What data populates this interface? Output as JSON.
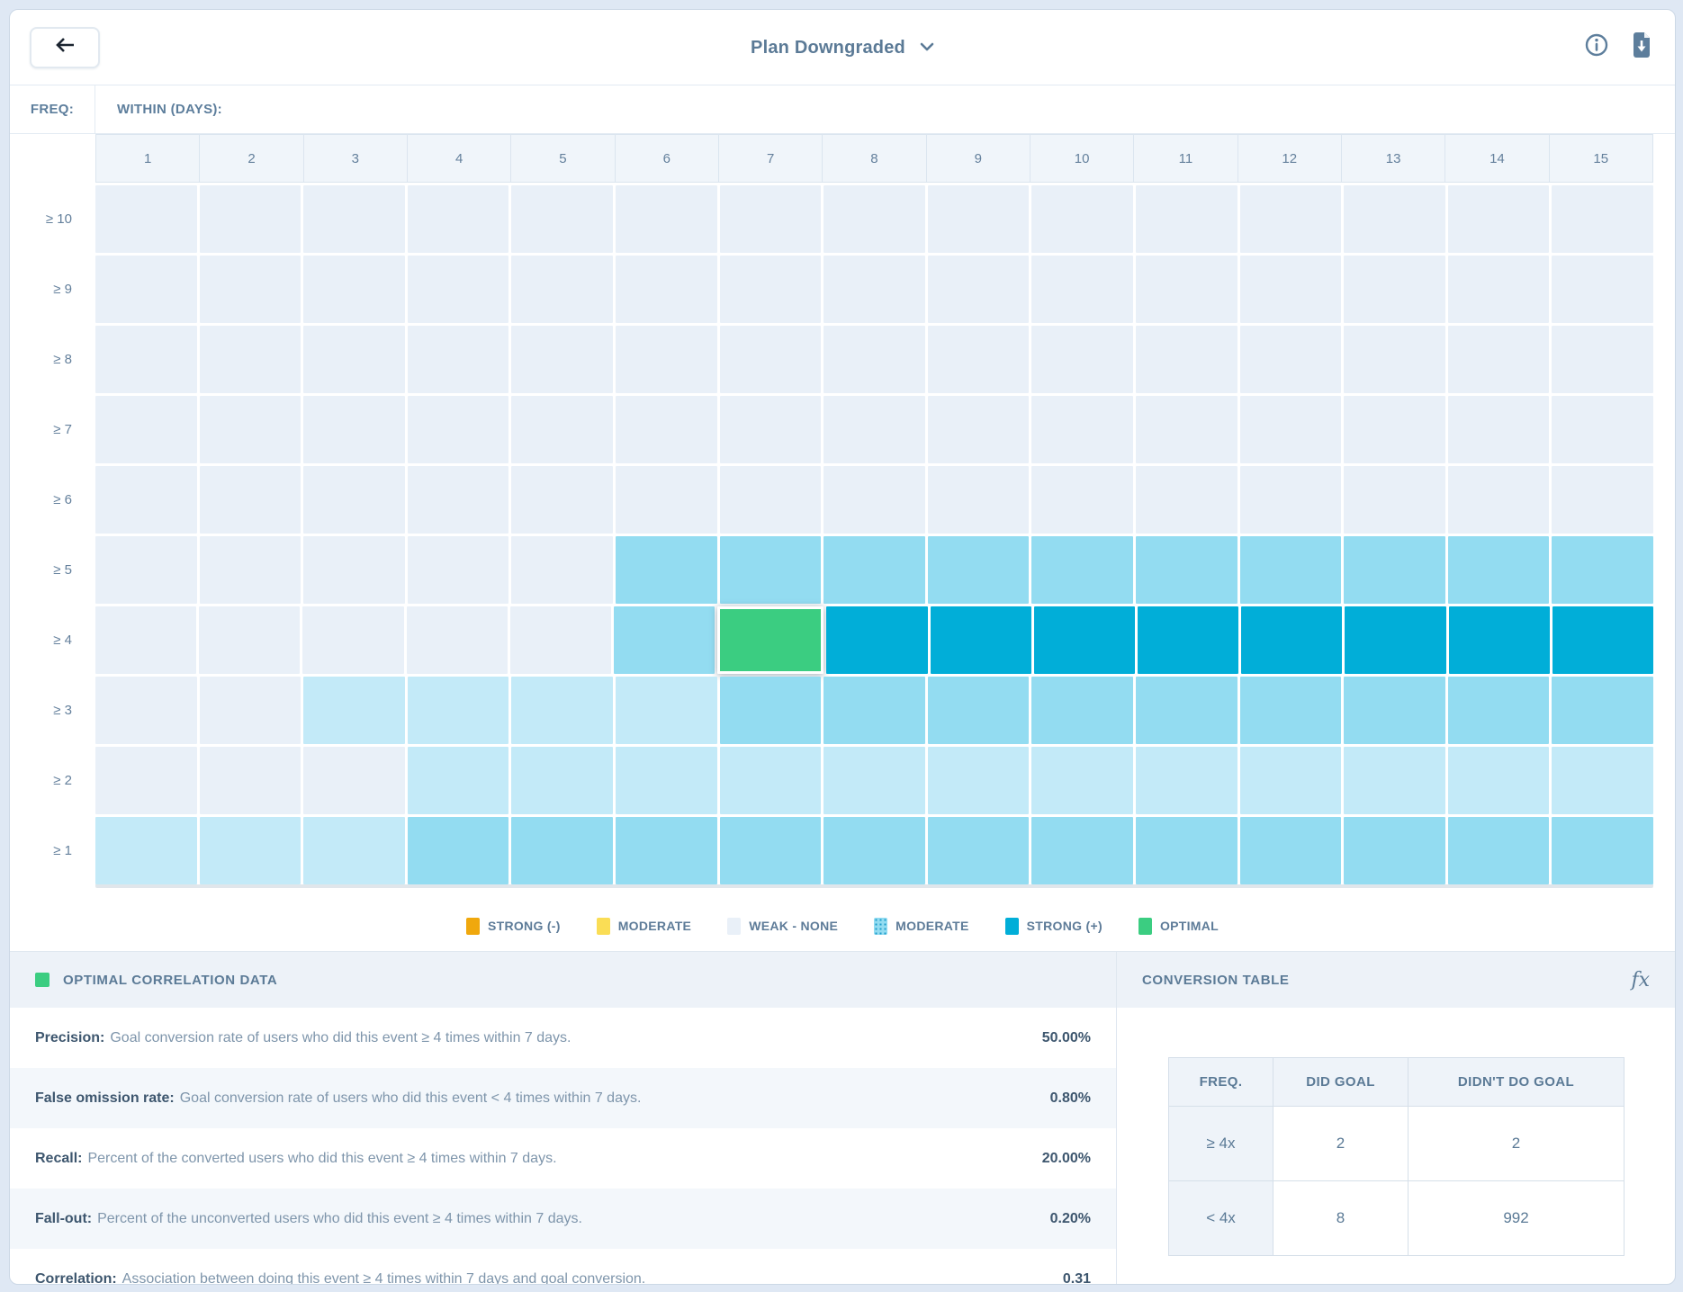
{
  "header": {
    "title": "Plan Downgraded",
    "back_icon": "arrow-left",
    "info_icon": "info-circle",
    "download_icon": "download-file"
  },
  "matrix": {
    "freq_label": "FREQ:",
    "within_label": "WITHIN (DAYS):",
    "columns": [
      "1",
      "2",
      "3",
      "4",
      "5",
      "6",
      "7",
      "8",
      "9",
      "10",
      "11",
      "12",
      "13",
      "14",
      "15"
    ],
    "rows": [
      {
        "label": "≥ 10",
        "cells": [
          "weak",
          "weak",
          "weak",
          "weak",
          "weak",
          "weak",
          "weak",
          "weak",
          "weak",
          "weak",
          "weak",
          "weak",
          "weak",
          "weak",
          "weak"
        ]
      },
      {
        "label": "≥ 9",
        "cells": [
          "weak",
          "weak",
          "weak",
          "weak",
          "weak",
          "weak",
          "weak",
          "weak",
          "weak",
          "weak",
          "weak",
          "weak",
          "weak",
          "weak",
          "weak"
        ]
      },
      {
        "label": "≥ 8",
        "cells": [
          "weak",
          "weak",
          "weak",
          "weak",
          "weak",
          "weak",
          "weak",
          "weak",
          "weak",
          "weak",
          "weak",
          "weak",
          "weak",
          "weak",
          "weak"
        ]
      },
      {
        "label": "≥ 7",
        "cells": [
          "weak",
          "weak",
          "weak",
          "weak",
          "weak",
          "weak",
          "weak",
          "weak",
          "weak",
          "weak",
          "weak",
          "weak",
          "weak",
          "weak",
          "weak"
        ]
      },
      {
        "label": "≥ 6",
        "cells": [
          "weak",
          "weak",
          "weak",
          "weak",
          "weak",
          "weak",
          "weak",
          "weak",
          "weak",
          "weak",
          "weak",
          "weak",
          "weak",
          "weak",
          "weak"
        ]
      },
      {
        "label": "≥ 5",
        "cells": [
          "weak",
          "weak",
          "weak",
          "weak",
          "weak",
          "moderate",
          "moderate",
          "moderate",
          "moderate",
          "moderate",
          "moderate",
          "moderate",
          "moderate",
          "moderate",
          "moderate"
        ]
      },
      {
        "label": "≥ 4",
        "cells": [
          "weak",
          "weak",
          "weak",
          "weak",
          "weak",
          "moderate",
          "optimal",
          "strong",
          "strong",
          "strong",
          "strong",
          "strong",
          "strong",
          "strong",
          "strong"
        ]
      },
      {
        "label": "≥ 3",
        "cells": [
          "weak",
          "weak",
          "light",
          "light",
          "light",
          "light",
          "moderate",
          "moderate",
          "moderate",
          "moderate",
          "moderate",
          "moderate",
          "moderate",
          "moderate",
          "moderate"
        ]
      },
      {
        "label": "≥ 2",
        "cells": [
          "weak",
          "weak",
          "weak",
          "light",
          "light",
          "light",
          "light",
          "light",
          "light",
          "light",
          "light",
          "light",
          "light",
          "light",
          "light"
        ]
      },
      {
        "label": "≥ 1",
        "cells": [
          "light",
          "light",
          "light",
          "moderate",
          "moderate",
          "moderate",
          "moderate",
          "moderate",
          "moderate",
          "moderate",
          "moderate",
          "moderate",
          "moderate",
          "moderate",
          "moderate"
        ]
      }
    ]
  },
  "colors": {
    "weak": "#e9f0f8",
    "light": "#c3eaf8",
    "moderate": "#93dcf1",
    "strong": "#01aed8",
    "optimal": "#3bcd81",
    "strong_neg": "#f0a80d",
    "moderate_neg": "#fadd55"
  },
  "legend": {
    "items": [
      {
        "label": "STRONG (-)",
        "color_key": "strong_neg",
        "dotted": false
      },
      {
        "label": "MODERATE",
        "color_key": "moderate_neg",
        "dotted": false
      },
      {
        "label": "WEAK - NONE",
        "color_key": "weak",
        "dotted": false
      },
      {
        "label": "MODERATE",
        "color_key": "moderate",
        "dotted": true
      },
      {
        "label": "STRONG (+)",
        "color_key": "strong",
        "dotted": false
      },
      {
        "label": "OPTIMAL",
        "color_key": "optimal",
        "dotted": false
      }
    ]
  },
  "optimal_panel": {
    "title": "OPTIMAL CORRELATION DATA",
    "metrics": [
      {
        "label": "Precision:",
        "description": "Goal conversion rate of users who did this event ≥ 4 times within 7 days.",
        "value": "50.00%"
      },
      {
        "label": "False omission rate:",
        "description": "Goal conversion rate of users who did this event < 4 times within 7 days.",
        "value": "0.80%"
      },
      {
        "label": "Recall:",
        "description": "Percent of the converted users who did this event ≥ 4 times within 7 days.",
        "value": "20.00%"
      },
      {
        "label": "Fall-out:",
        "description": "Percent of the unconverted users who did this event ≥ 4 times within 7 days.",
        "value": "0.20%"
      },
      {
        "label": "Correlation:",
        "description": "Association between doing this event ≥ 4 times within 7 days and goal conversion.",
        "value": "0.31"
      }
    ]
  },
  "conversion_panel": {
    "title": "CONVERSION TABLE",
    "fx_icon": "formula-fx",
    "table": {
      "headers": [
        "FREQ.",
        "DID GOAL",
        "DIDN'T DO GOAL"
      ],
      "rows": [
        {
          "freq": "≥ 4x",
          "did_goal": "2",
          "didnt_do_goal": "2"
        },
        {
          "freq": "< 4x",
          "did_goal": "8",
          "didnt_do_goal": "992"
        }
      ]
    }
  }
}
